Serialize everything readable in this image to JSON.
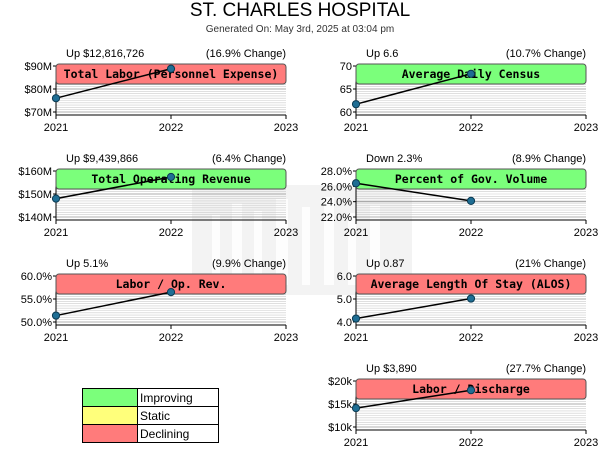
{
  "report": {
    "title": "ST. CHARLES HOSPITAL",
    "subtitle": "Generated On: May 3rd, 2025 at 03:04 pm"
  },
  "status_colors": {
    "improving": "#7bff7b",
    "static": "#ffff7b",
    "declining": "#ff7b7b"
  },
  "legend": [
    {
      "label": "Improving",
      "status": "improving"
    },
    {
      "label": "Static",
      "status": "static"
    },
    {
      "label": "Declining",
      "status": "declining"
    }
  ],
  "chart_data": [
    {
      "type": "line",
      "title": "Total Labor (Personnel Expense)",
      "summary": "Up $12,816,726",
      "change": "(16.9% Change)",
      "status": "declining",
      "x": [
        "2021",
        "2022",
        "2023"
      ],
      "series": [
        {
          "values": [
            76.0,
            88.8,
            null
          ]
        }
      ],
      "ylim": [
        70,
        90
      ],
      "yticks": [
        {
          "v": 70,
          "label": "$70M"
        },
        {
          "v": 80,
          "label": "$80M"
        },
        {
          "v": 90,
          "label": "$90M"
        }
      ]
    },
    {
      "type": "line",
      "title": "Average Daily Census",
      "summary": "Up 6.6",
      "change": "(10.7% Change)",
      "status": "improving",
      "x": [
        "2021",
        "2022",
        "2023"
      ],
      "series": [
        {
          "values": [
            61.7,
            68.3,
            null
          ]
        }
      ],
      "ylim": [
        60,
        70
      ],
      "yticks": [
        {
          "v": 60,
          "label": "60"
        },
        {
          "v": 65,
          "label": "65"
        },
        {
          "v": 70,
          "label": "70"
        }
      ]
    },
    {
      "type": "line",
      "title": "Total Operating Revenue",
      "summary": "Up $9,439,866",
      "change": "(6.4% Change)",
      "status": "improving",
      "x": [
        "2021",
        "2022",
        "2023"
      ],
      "series": [
        {
          "values": [
            148.0,
            157.4,
            null
          ]
        }
      ],
      "ylim": [
        140,
        160
      ],
      "yticks": [
        {
          "v": 140,
          "label": "$140M"
        },
        {
          "v": 150,
          "label": "$150M"
        },
        {
          "v": 160,
          "label": "$160M"
        }
      ]
    },
    {
      "type": "line",
      "title": "Percent of Gov. Volume",
      "summary": "Down 2.3%",
      "change": "(8.9% Change)",
      "status": "improving",
      "x": [
        "2021",
        "2022",
        "2023"
      ],
      "series": [
        {
          "values": [
            26.4,
            24.1,
            null
          ]
        }
      ],
      "ylim": [
        22,
        28
      ],
      "yticks": [
        {
          "v": 22,
          "label": "22.0%"
        },
        {
          "v": 24,
          "label": "24.0%"
        },
        {
          "v": 26,
          "label": "26.0%"
        },
        {
          "v": 28,
          "label": "28.0%"
        }
      ]
    },
    {
      "type": "line",
      "title": "Labor / Op. Rev.",
      "summary": "Up 5.1%",
      "change": "(9.9% Change)",
      "status": "declining",
      "x": [
        "2021",
        "2022",
        "2023"
      ],
      "series": [
        {
          "values": [
            51.4,
            56.5,
            null
          ]
        }
      ],
      "ylim": [
        50,
        60
      ],
      "yticks": [
        {
          "v": 50,
          "label": "50.0%"
        },
        {
          "v": 55,
          "label": "55.0%"
        },
        {
          "v": 60,
          "label": "60.0%"
        }
      ]
    },
    {
      "type": "line",
      "title": "Average Length Of Stay (ALOS)",
      "summary": "Up 0.87",
      "change": "(21% Change)",
      "status": "declining",
      "x": [
        "2021",
        "2022",
        "2023"
      ],
      "series": [
        {
          "values": [
            4.15,
            5.02,
            null
          ]
        }
      ],
      "ylim": [
        4,
        6
      ],
      "yticks": [
        {
          "v": 4,
          "label": "4.0"
        },
        {
          "v": 5,
          "label": "5.0"
        },
        {
          "v": 6,
          "label": "6.0"
        }
      ]
    },
    {
      "type": "line",
      "title": "Labor / Discharge",
      "summary": "Up $3,890",
      "change": "(27.7% Change)",
      "status": "declining",
      "x": [
        "2021",
        "2022",
        "2023"
      ],
      "series": [
        {
          "values": [
            14.1,
            18.0,
            null
          ]
        }
      ],
      "ylim": [
        10,
        20
      ],
      "yticks": [
        {
          "v": 10,
          "label": "$10k"
        },
        {
          "v": 15,
          "label": "$15k"
        },
        {
          "v": 20,
          "label": "$20k"
        }
      ]
    }
  ]
}
